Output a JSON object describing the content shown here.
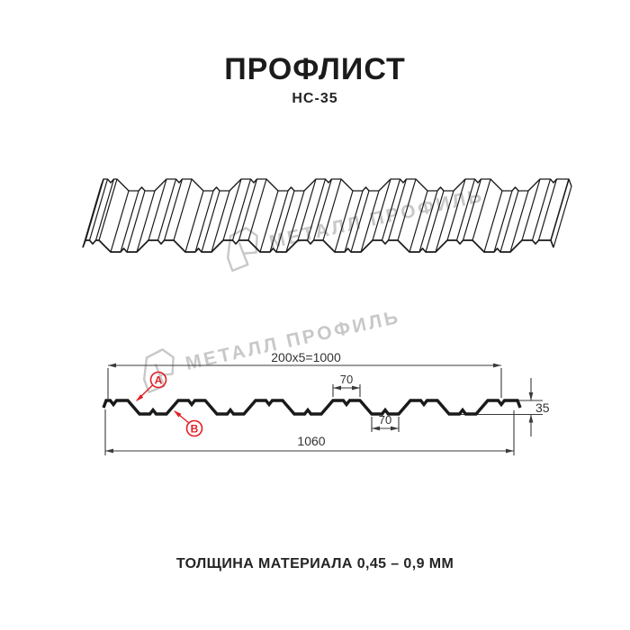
{
  "header": {
    "title": "ПРОФЛИСТ",
    "subtitle": "НС-35"
  },
  "watermark": {
    "text": "МЕТАЛЛ ПРОФИЛЬ",
    "color": "#c8c8c8"
  },
  "cross_section": {
    "dim_width_formula": "200x5=1000",
    "dim_top_flat_width": "70",
    "dim_bottom_flat_width": "70",
    "dim_total_width": "1060",
    "dim_height": "35",
    "label_a": "A",
    "label_b": "B",
    "accent_color": "#e31e24",
    "line_color": "#1a1a1a",
    "dim_color": "#3a3a3a"
  },
  "footer": {
    "thickness_note": "ТОЛЩИНА МАТЕРИАЛА 0,45 – 0,9 ММ"
  }
}
